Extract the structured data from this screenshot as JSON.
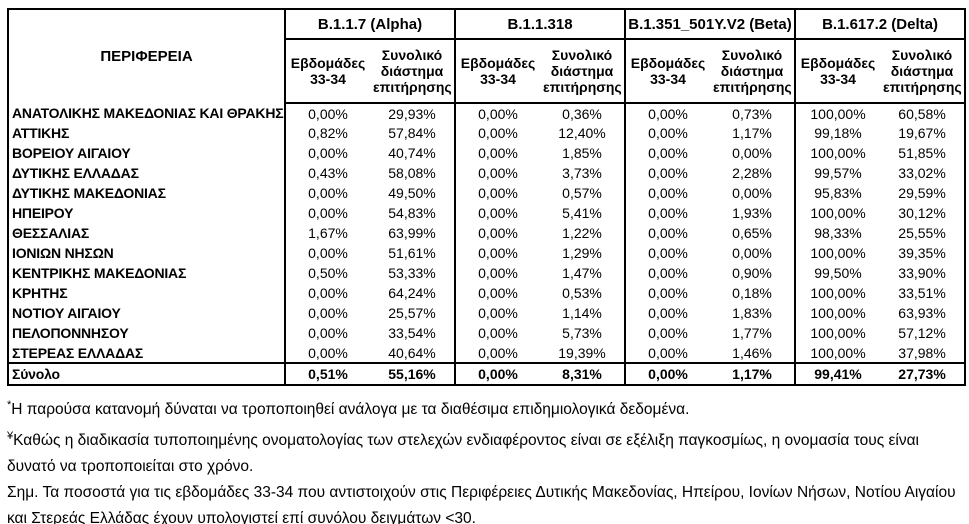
{
  "table": {
    "region_header": "ΠΕΡΙΦΕΡΕΙΑ",
    "variant_groups": [
      {
        "label": "B.1.1.7 (Alpha)"
      },
      {
        "label": "B.1.1.318"
      },
      {
        "label": "B.1.351_501Y.V2 (Beta)"
      },
      {
        "label": "B.1.617.2 (Delta)"
      }
    ],
    "subheaders": {
      "weeks": "Εβδομάδες 33-34",
      "total": "Συνολικό διάστημα επιτήρησης"
    },
    "rows": [
      {
        "region": "ΑΝΑΤΟΛΙΚΗΣ ΜΑΚΕΔΟΝΙΑΣ ΚΑΙ ΘΡΑΚΗΣ",
        "values": [
          "0,00%",
          "29,93%",
          "0,00%",
          "0,36%",
          "0,00%",
          "0,73%",
          "100,00%",
          "60,58%"
        ]
      },
      {
        "region": "ΑΤΤΙΚΗΣ",
        "values": [
          "0,82%",
          "57,84%",
          "0,00%",
          "12,40%",
          "0,00%",
          "1,17%",
          "99,18%",
          "19,67%"
        ]
      },
      {
        "region": "ΒΟΡΕΙΟΥ ΑΙΓΑΙΟΥ",
        "values": [
          "0,00%",
          "40,74%",
          "0,00%",
          "1,85%",
          "0,00%",
          "0,00%",
          "100,00%",
          "51,85%"
        ]
      },
      {
        "region": "ΔΥΤΙΚΗΣ ΕΛΛΑΔΑΣ",
        "values": [
          "0,43%",
          "58,08%",
          "0,00%",
          "3,73%",
          "0,00%",
          "2,28%",
          "99,57%",
          "33,02%"
        ]
      },
      {
        "region": "ΔΥΤΙΚΗΣ ΜΑΚΕΔΟΝΙΑΣ",
        "values": [
          "0,00%",
          "49,50%",
          "0,00%",
          "0,57%",
          "0,00%",
          "0,00%",
          "95,83%",
          "29,59%"
        ]
      },
      {
        "region": "ΗΠΕΙΡΟΥ",
        "values": [
          "0,00%",
          "54,83%",
          "0,00%",
          "5,41%",
          "0,00%",
          "1,93%",
          "100,00%",
          "30,12%"
        ]
      },
      {
        "region": "ΘΕΣΣΑΛΙΑΣ",
        "values": [
          "1,67%",
          "63,99%",
          "0,00%",
          "1,22%",
          "0,00%",
          "0,65%",
          "98,33%",
          "25,55%"
        ]
      },
      {
        "region": "ΙΟΝΙΩΝ ΝΗΣΩΝ",
        "values": [
          "0,00%",
          "51,61%",
          "0,00%",
          "1,29%",
          "0,00%",
          "0,00%",
          "100,00%",
          "39,35%"
        ]
      },
      {
        "region": "ΚΕΝΤΡΙΚΗΣ ΜΑΚΕΔΟΝΙΑΣ",
        "values": [
          "0,50%",
          "53,33%",
          "0,00%",
          "1,47%",
          "0,00%",
          "0,90%",
          "99,50%",
          "33,90%"
        ]
      },
      {
        "region": "ΚΡΗΤΗΣ",
        "values": [
          "0,00%",
          "64,24%",
          "0,00%",
          "0,53%",
          "0,00%",
          "0,18%",
          "100,00%",
          "33,51%"
        ]
      },
      {
        "region": "ΝΟΤΙΟΥ ΑΙΓΑΙΟΥ",
        "values": [
          "0,00%",
          "25,57%",
          "0,00%",
          "1,14%",
          "0,00%",
          "1,83%",
          "100,00%",
          "63,93%"
        ]
      },
      {
        "region": "ΠΕΛΟΠΟΝΝΗΣΟΥ",
        "values": [
          "0,00%",
          "33,54%",
          "0,00%",
          "5,73%",
          "0,00%",
          "1,77%",
          "100,00%",
          "57,12%"
        ]
      },
      {
        "region": "ΣΤΕΡΕΑΣ ΕΛΛΑΔΑΣ",
        "values": [
          "0,00%",
          "40,64%",
          "0,00%",
          "19,39%",
          "0,00%",
          "1,46%",
          "100,00%",
          "37,98%"
        ]
      }
    ],
    "total_row": {
      "label": "Σύνολο",
      "values": [
        "0,51%",
        "55,16%",
        "0,00%",
        "8,31%",
        "0,00%",
        "1,17%",
        "99,41%",
        "27,73%"
      ]
    }
  },
  "footnotes": [
    {
      "marker": "*",
      "text": "Η παρούσα κατανομή δύναται να τροποποιηθεί ανάλογα με τα διαθέσιμα επιδημιολογικά δεδομένα."
    },
    {
      "marker": "¥",
      "text": "Καθώς η διαδικασία τυποποιημένης ονοματολογίας των στελεχών ενδιαφέροντος είναι σε εξέλιξη παγκοσμίως, η ονομασία τους είναι δυνατό να τροποποιείται στο χρόνο."
    },
    {
      "marker": "",
      "text": "Σημ. Τα ποσοστά για τις εβδομάδες 33-34 που αντιστοιχούν στις Περιφέρειες Δυτικής Μακεδονίας, Ηπείρου, Ιονίων Νήσων, Νοτίου Αιγαίου και Στερεάς Ελλάδας έχουν υπολογιστεί επί συνόλου δειγμάτων <30."
    }
  ]
}
